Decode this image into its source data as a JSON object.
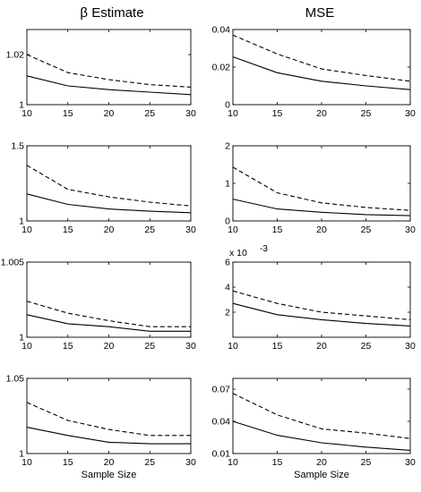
{
  "column_titles": [
    "β Estimate",
    "MSE"
  ],
  "chart_data": [
    {
      "type": "line",
      "title": "β Estimate",
      "xlabel": "",
      "ylabel": "",
      "x": [
        10,
        15,
        20,
        25,
        30
      ],
      "xlim": [
        10,
        30
      ],
      "ylim": [
        1,
        1.03
      ],
      "yticks": [
        1,
        1.02
      ],
      "ytick_labels": [
        "1",
        "1.02"
      ],
      "series": [
        {
          "style": "solid",
          "values": [
            1.0115,
            1.0075,
            1.006,
            1.005,
            1.004
          ]
        },
        {
          "style": "dashed",
          "values": [
            1.02,
            1.0128,
            1.01,
            1.008,
            1.007
          ]
        }
      ]
    },
    {
      "type": "line",
      "title": "MSE",
      "xlabel": "",
      "ylabel": "",
      "x": [
        10,
        15,
        20,
        25,
        30
      ],
      "xlim": [
        10,
        30
      ],
      "ylim": [
        0,
        0.04
      ],
      "yticks": [
        0,
        0.02,
        0.04
      ],
      "ytick_labels": [
        "0",
        "0.02",
        "0.04"
      ],
      "series": [
        {
          "style": "solid",
          "values": [
            0.0255,
            0.017,
            0.0125,
            0.01,
            0.008
          ]
        },
        {
          "style": "dashed",
          "values": [
            0.037,
            0.027,
            0.019,
            0.0155,
            0.0125
          ]
        }
      ]
    },
    {
      "type": "line",
      "xlabel": "",
      "ylabel": "",
      "x": [
        10,
        15,
        20,
        25,
        30
      ],
      "xlim": [
        10,
        30
      ],
      "ylim": [
        1,
        1.5
      ],
      "yticks": [
        1,
        1.5
      ],
      "ytick_labels": [
        "1",
        "1.5"
      ],
      "series": [
        {
          "style": "solid",
          "values": [
            1.18,
            1.11,
            1.08,
            1.065,
            1.055
          ]
        },
        {
          "style": "dashed",
          "values": [
            1.37,
            1.21,
            1.16,
            1.125,
            1.1
          ]
        }
      ]
    },
    {
      "type": "line",
      "xlabel": "",
      "ylabel": "",
      "x": [
        10,
        15,
        20,
        25,
        30
      ],
      "xlim": [
        10,
        30
      ],
      "ylim": [
        0,
        2
      ],
      "yticks": [
        0,
        1,
        2
      ],
      "ytick_labels": [
        "0",
        "1",
        "2"
      ],
      "series": [
        {
          "style": "solid",
          "values": [
            0.58,
            0.32,
            0.23,
            0.17,
            0.14
          ]
        },
        {
          "style": "dashed",
          "values": [
            1.43,
            0.75,
            0.48,
            0.36,
            0.28
          ]
        }
      ]
    },
    {
      "type": "line",
      "xlabel": "",
      "ylabel": "",
      "x": [
        10,
        15,
        20,
        25,
        30
      ],
      "xlim": [
        10,
        30
      ],
      "ylim": [
        1,
        1.005
      ],
      "yticks": [
        1,
        1.005
      ],
      "ytick_labels": [
        "1",
        "1.005"
      ],
      "series": [
        {
          "style": "solid",
          "values": [
            1.0015,
            1.0009,
            1.0007,
            1.0004,
            1.0004
          ]
        },
        {
          "style": "dashed",
          "values": [
            1.0024,
            1.0016,
            1.0011,
            1.0007,
            1.0007
          ]
        }
      ]
    },
    {
      "type": "line",
      "xlabel": "",
      "ylabel": "",
      "x": [
        10,
        15,
        20,
        25,
        30
      ],
      "xlim": [
        10,
        30
      ],
      "ylim": [
        0,
        6
      ],
      "yticks": [
        2,
        4,
        6
      ],
      "ytick_labels": [
        "2",
        "4",
        "6"
      ],
      "y_exponent": {
        "base": "x 10",
        "power": "-3"
      },
      "series": [
        {
          "style": "solid",
          "values": [
            2.7,
            1.8,
            1.4,
            1.1,
            0.9
          ]
        },
        {
          "style": "dashed",
          "values": [
            3.7,
            2.7,
            2.0,
            1.7,
            1.4
          ]
        }
      ]
    },
    {
      "type": "line",
      "xlabel": "Sample Size",
      "ylabel": "",
      "x": [
        10,
        15,
        20,
        25,
        30
      ],
      "xlim": [
        10,
        30
      ],
      "ylim": [
        1,
        1.05
      ],
      "yticks": [
        1,
        1.05
      ],
      "ytick_labels": [
        "1",
        "1.05"
      ],
      "series": [
        {
          "style": "solid",
          "values": [
            1.0175,
            1.012,
            1.0075,
            1.0065,
            1.0065
          ]
        },
        {
          "style": "dashed",
          "values": [
            1.034,
            1.022,
            1.016,
            1.012,
            1.012
          ]
        }
      ]
    },
    {
      "type": "line",
      "xlabel": "Sample Size",
      "ylabel": "",
      "x": [
        10,
        15,
        20,
        25,
        30
      ],
      "xlim": [
        10,
        30
      ],
      "ylim": [
        0.01,
        0.08
      ],
      "yticks": [
        0.01,
        0.04,
        0.07
      ],
      "ytick_labels": [
        "0.01",
        "0.04",
        "0.07"
      ],
      "series": [
        {
          "style": "solid",
          "values": [
            0.04,
            0.027,
            0.02,
            0.016,
            0.013
          ]
        },
        {
          "style": "dashed",
          "values": [
            0.066,
            0.046,
            0.033,
            0.029,
            0.024
          ]
        }
      ]
    }
  ],
  "x_tick_labels": [
    "10",
    "15",
    "20",
    "25",
    "30"
  ]
}
